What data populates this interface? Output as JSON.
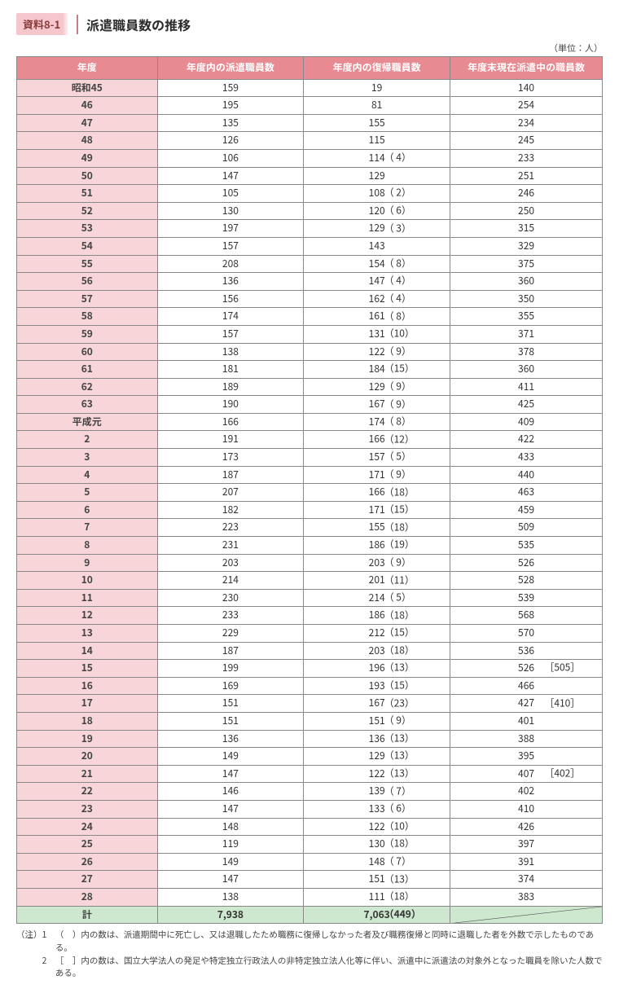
{
  "badge": "資料8-1",
  "title": "派遣職員数の推移",
  "unit": "（単位：人）",
  "columns": [
    "年度",
    "年度内の派遣職員数",
    "年度内の復帰職員数",
    "年度末現在派遣中の職員数"
  ],
  "colors": {
    "header_bg": "#e88a91",
    "header_fg": "#ffffff",
    "year_bg": "#f8d5d8",
    "total_bg": "#cde8ce",
    "border": "#888888",
    "badge_bg": "#f5c6cb",
    "badge_fg": "#8a3a3a"
  },
  "rows": [
    {
      "yr": "昭和45",
      "a": "159",
      "b": "19",
      "bp": "",
      "c": "140",
      "cb": ""
    },
    {
      "yr": "46",
      "a": "195",
      "b": "81",
      "bp": "",
      "c": "254",
      "cb": ""
    },
    {
      "yr": "47",
      "a": "135",
      "b": "155",
      "bp": "",
      "c": "234",
      "cb": ""
    },
    {
      "yr": "48",
      "a": "126",
      "b": "115",
      "bp": "",
      "c": "245",
      "cb": ""
    },
    {
      "yr": "49",
      "a": "106",
      "b": "114",
      "bp": "（ 4）",
      "c": "233",
      "cb": ""
    },
    {
      "yr": "50",
      "a": "147",
      "b": "129",
      "bp": "",
      "c": "251",
      "cb": ""
    },
    {
      "yr": "51",
      "a": "105",
      "b": "108",
      "bp": "（ 2）",
      "c": "246",
      "cb": ""
    },
    {
      "yr": "52",
      "a": "130",
      "b": "120",
      "bp": "（ 6）",
      "c": "250",
      "cb": ""
    },
    {
      "yr": "53",
      "a": "197",
      "b": "129",
      "bp": "（ 3）",
      "c": "315",
      "cb": ""
    },
    {
      "yr": "54",
      "a": "157",
      "b": "143",
      "bp": "",
      "c": "329",
      "cb": ""
    },
    {
      "yr": "55",
      "a": "208",
      "b": "154",
      "bp": "（ 8）",
      "c": "375",
      "cb": ""
    },
    {
      "yr": "56",
      "a": "136",
      "b": "147",
      "bp": "（ 4）",
      "c": "360",
      "cb": ""
    },
    {
      "yr": "57",
      "a": "156",
      "b": "162",
      "bp": "（ 4）",
      "c": "350",
      "cb": ""
    },
    {
      "yr": "58",
      "a": "174",
      "b": "161",
      "bp": "（ 8）",
      "c": "355",
      "cb": ""
    },
    {
      "yr": "59",
      "a": "157",
      "b": "131",
      "bp": "（10）",
      "c": "371",
      "cb": ""
    },
    {
      "yr": "60",
      "a": "138",
      "b": "122",
      "bp": "（ 9）",
      "c": "378",
      "cb": ""
    },
    {
      "yr": "61",
      "a": "181",
      "b": "184",
      "bp": "（15）",
      "c": "360",
      "cb": ""
    },
    {
      "yr": "62",
      "a": "189",
      "b": "129",
      "bp": "（ 9）",
      "c": "411",
      "cb": ""
    },
    {
      "yr": "63",
      "a": "190",
      "b": "167",
      "bp": "（ 9）",
      "c": "425",
      "cb": ""
    },
    {
      "yr": "平成元",
      "a": "166",
      "b": "174",
      "bp": "（ 8）",
      "c": "409",
      "cb": ""
    },
    {
      "yr": "2",
      "a": "191",
      "b": "166",
      "bp": "（12）",
      "c": "422",
      "cb": ""
    },
    {
      "yr": "3",
      "a": "173",
      "b": "157",
      "bp": "（ 5）",
      "c": "433",
      "cb": ""
    },
    {
      "yr": "4",
      "a": "187",
      "b": "171",
      "bp": "（ 9）",
      "c": "440",
      "cb": ""
    },
    {
      "yr": "5",
      "a": "207",
      "b": "166",
      "bp": "（18）",
      "c": "463",
      "cb": ""
    },
    {
      "yr": "6",
      "a": "182",
      "b": "171",
      "bp": "（15）",
      "c": "459",
      "cb": ""
    },
    {
      "yr": "7",
      "a": "223",
      "b": "155",
      "bp": "（18）",
      "c": "509",
      "cb": ""
    },
    {
      "yr": "8",
      "a": "231",
      "b": "186",
      "bp": "（19）",
      "c": "535",
      "cb": ""
    },
    {
      "yr": "9",
      "a": "203",
      "b": "203",
      "bp": "（ 9）",
      "c": "526",
      "cb": ""
    },
    {
      "yr": "10",
      "a": "214",
      "b": "201",
      "bp": "（11）",
      "c": "528",
      "cb": ""
    },
    {
      "yr": "11",
      "a": "230",
      "b": "214",
      "bp": "（ 5）",
      "c": "539",
      "cb": ""
    },
    {
      "yr": "12",
      "a": "233",
      "b": "186",
      "bp": "（18）",
      "c": "568",
      "cb": ""
    },
    {
      "yr": "13",
      "a": "229",
      "b": "212",
      "bp": "（15）",
      "c": "570",
      "cb": ""
    },
    {
      "yr": "14",
      "a": "187",
      "b": "203",
      "bp": "（18）",
      "c": "536",
      "cb": ""
    },
    {
      "yr": "15",
      "a": "199",
      "b": "196",
      "bp": "（13）",
      "c": "526",
      "cb": "［505］"
    },
    {
      "yr": "16",
      "a": "169",
      "b": "193",
      "bp": "（15）",
      "c": "466",
      "cb": ""
    },
    {
      "yr": "17",
      "a": "151",
      "b": "167",
      "bp": "（23）",
      "c": "427",
      "cb": "［410］"
    },
    {
      "yr": "18",
      "a": "151",
      "b": "151",
      "bp": "（ 9）",
      "c": "401",
      "cb": ""
    },
    {
      "yr": "19",
      "a": "136",
      "b": "136",
      "bp": "（13）",
      "c": "388",
      "cb": ""
    },
    {
      "yr": "20",
      "a": "149",
      "b": "129",
      "bp": "（13）",
      "c": "395",
      "cb": ""
    },
    {
      "yr": "21",
      "a": "147",
      "b": "122",
      "bp": "（13）",
      "c": "407",
      "cb": "［402］"
    },
    {
      "yr": "22",
      "a": "146",
      "b": "139",
      "bp": "（ 7）",
      "c": "402",
      "cb": ""
    },
    {
      "yr": "23",
      "a": "147",
      "b": "133",
      "bp": "（ 6）",
      "c": "410",
      "cb": ""
    },
    {
      "yr": "24",
      "a": "148",
      "b": "122",
      "bp": "（10）",
      "c": "426",
      "cb": ""
    },
    {
      "yr": "25",
      "a": "119",
      "b": "130",
      "bp": "（18）",
      "c": "397",
      "cb": ""
    },
    {
      "yr": "26",
      "a": "149",
      "b": "148",
      "bp": "（ 7）",
      "c": "391",
      "cb": ""
    },
    {
      "yr": "27",
      "a": "147",
      "b": "151",
      "bp": "（13）",
      "c": "374",
      "cb": ""
    },
    {
      "yr": "28",
      "a": "138",
      "b": "111",
      "bp": "（18）",
      "c": "383",
      "cb": ""
    }
  ],
  "total": {
    "yr": "計",
    "a": "7,938",
    "b": "7,063",
    "bp": "（449）"
  },
  "notes": [
    {
      "lead": "（注）1　",
      "body": "（　）内の数は、派遣期間中に死亡し、又は退職したため職務に復帰しなかった者及び職務復帰と同時に退職した者を外数で示したものである。"
    },
    {
      "lead": "　　　2　",
      "body": "［　］内の数は、国立大学法人の発足や特定独立行政法人の非特定独立法人化等に伴い、派遣中に派遣法の対象外となった職員を除いた人数である。"
    }
  ]
}
